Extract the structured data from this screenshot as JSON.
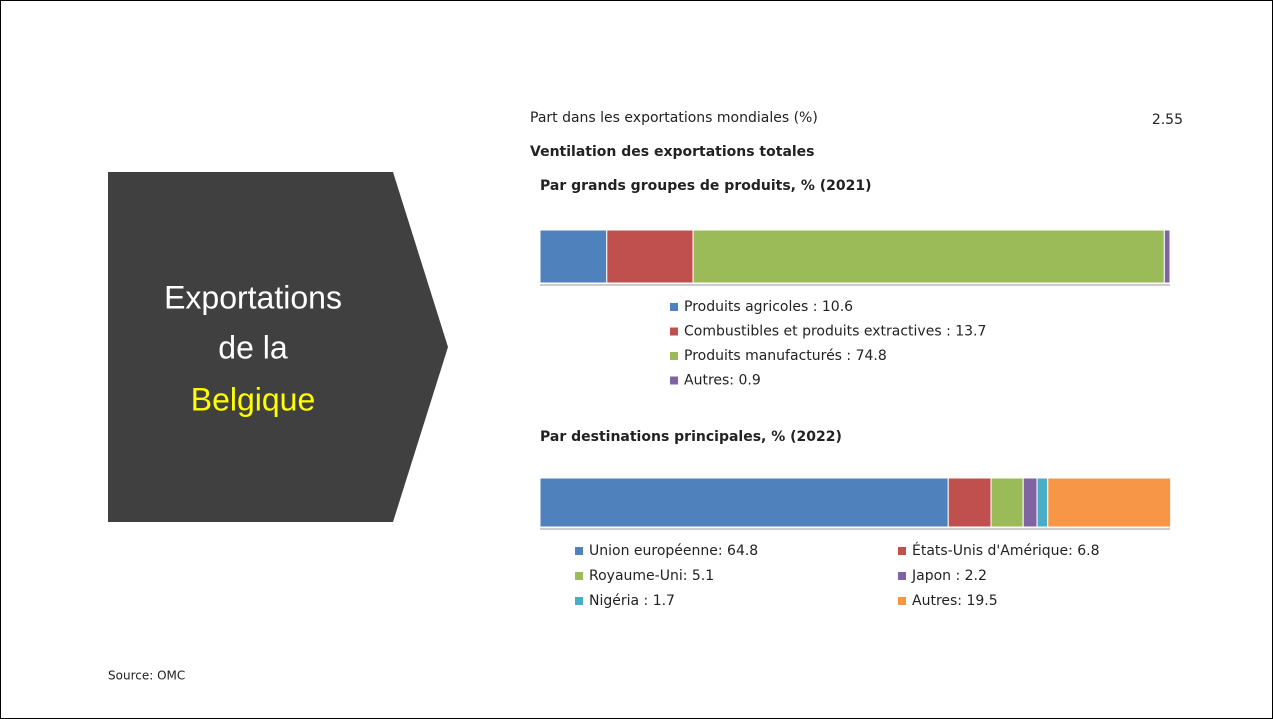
{
  "slide": {
    "title_lines": [
      "Exportations",
      "de la",
      "Belgique"
    ],
    "share_label": "Part dans les exportations mondiales (%)",
    "share_value": 2.55,
    "section": "Ventilation des exportations totales",
    "source": "Source: OMC"
  },
  "chart_data": [
    {
      "type": "bar",
      "orientation": "horizontal",
      "stacked": true,
      "title": "Par grands groupes de produits, % (2021)",
      "categories": [
        null
      ],
      "xlim": [
        0,
        100
      ],
      "legend_columns": 1,
      "series": [
        {
          "name": "Produits agricoles : 10.6",
          "color": "#4f81bd",
          "values": [
            10.6
          ]
        },
        {
          "name": "Combustibles et produits extractives : 13.7",
          "color": "#c0504d",
          "values": [
            13.7
          ]
        },
        {
          "name": "Produits manufacturés : 74.8",
          "color": "#9bbb59",
          "values": [
            74.8
          ]
        },
        {
          "name": "Autres: 0.9",
          "color": "#8064a2",
          "values": [
            0.9
          ]
        }
      ]
    },
    {
      "type": "bar",
      "orientation": "horizontal",
      "stacked": true,
      "title": "Par destinations principales, % (2022)",
      "categories": [
        null
      ],
      "xlim": [
        0,
        100
      ],
      "legend_columns": 2,
      "series": [
        {
          "name": "Union européenne: 64.8",
          "color": "#4f81bd",
          "values": [
            64.8
          ]
        },
        {
          "name": "États-Unis d'Amérique: 6.8",
          "color": "#c0504d",
          "values": [
            6.8
          ]
        },
        {
          "name": "Royaume-Uni: 5.1",
          "color": "#9bbb59",
          "values": [
            5.1
          ]
        },
        {
          "name": "Japon : 2.2",
          "color": "#8064a2",
          "values": [
            2.2
          ]
        },
        {
          "name": "Nigéria : 1.7",
          "color": "#4bacc6",
          "values": [
            1.7
          ]
        },
        {
          "name": "Autres: 19.5",
          "color": "#f79646",
          "values": [
            19.5
          ]
        }
      ]
    }
  ]
}
